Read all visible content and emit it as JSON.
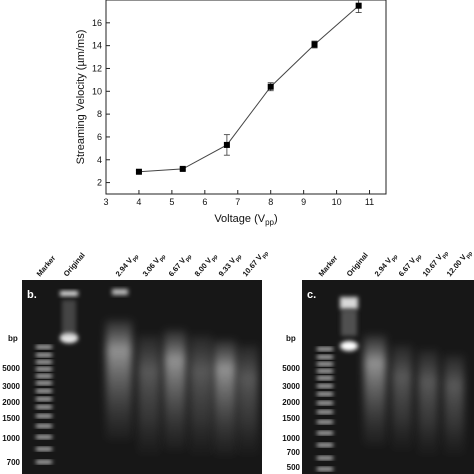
{
  "chart_data": {
    "type": "line",
    "xlabel": "Voltage (V",
    "xlabel_sub": "pp",
    "xlabel_close": ")",
    "ylabel": "Streaming Velocity (µm/ms)",
    "xlim": [
      3,
      11.5
    ],
    "ylim": [
      1,
      18
    ],
    "x_ticks": [
      "3",
      "4",
      "5",
      "6",
      "7",
      "8",
      "9",
      "10",
      "11"
    ],
    "y_ticks": [
      "2",
      "4",
      "6",
      "8",
      "10",
      "12",
      "14",
      "16"
    ],
    "series": [
      {
        "x": [
          4.0,
          5.33,
          6.67,
          8.0,
          9.33,
          10.67
        ],
        "y": [
          2.95,
          3.2,
          5.3,
          10.4,
          14.1,
          17.5
        ],
        "err": [
          0.1,
          0.1,
          0.9,
          0.35,
          0.3,
          0.6
        ]
      }
    ]
  },
  "gels": [
    {
      "panel": "b.",
      "lane_labels": [
        {
          "text": "Marker"
        },
        {
          "text": "Original"
        },
        {
          "text": "2.94 V",
          "sub": "pp"
        },
        {
          "text": "3.06 V",
          "sub": "pp"
        },
        {
          "text": "6.67 V",
          "sub": "pp"
        },
        {
          "text": "8.00 V",
          "sub": "pp"
        },
        {
          "text": "9.33 V",
          "sub": "pp"
        },
        {
          "text": "10.67 V",
          "sub": "pp"
        }
      ],
      "bp_title": "bp",
      "bp_labels": [
        "5000",
        "3000",
        "2000",
        "1500",
        "1000",
        "700"
      ]
    },
    {
      "panel": "c.",
      "lane_labels": [
        {
          "text": "Marker"
        },
        {
          "text": "Original"
        },
        {
          "text": "2.94 V",
          "sub": "pp"
        },
        {
          "text": "6.67 V",
          "sub": "pp"
        },
        {
          "text": "10.67 V",
          "sub": "pp"
        },
        {
          "text": "12.00 V",
          "sub": "pp"
        }
      ],
      "bp_title": "bp",
      "bp_labels": [
        "5000",
        "3000",
        "2000",
        "1500",
        "1000",
        "700",
        "500"
      ]
    }
  ]
}
